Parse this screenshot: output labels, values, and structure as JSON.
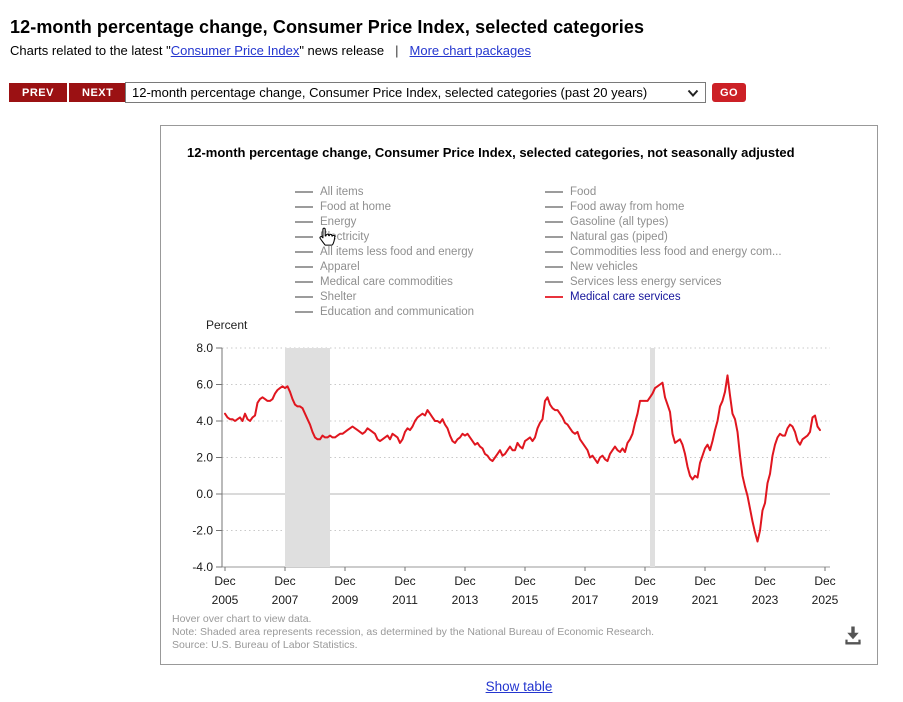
{
  "page": {
    "title": "12-month percentage change, Consumer Price Index, selected categories",
    "intro": {
      "prefix": "Charts related to the latest \"",
      "cpi_link": "Consumer Price Index",
      "suffix": "\" news release",
      "separator": "|",
      "packages_link": "More chart packages"
    },
    "show_table_label": "Show table"
  },
  "controls": {
    "prev": "PREV",
    "next": "NEXT",
    "go": "GO",
    "chart_select_value": "12-month percentage change, Consumer Price Index, selected categories (past 20 years)"
  },
  "chart": {
    "title": "12-month percentage change, Consumer Price Index, selected categories, not seasonally adjusted",
    "y_axis_title": "Percent",
    "legend": {
      "columns": [
        [
          {
            "label": "All items"
          },
          {
            "label": "Food at home"
          },
          {
            "label": "Energy"
          },
          {
            "label": "Electricity"
          },
          {
            "label": "All items less food and energy"
          },
          {
            "label": "Apparel"
          },
          {
            "label": "Medical care commodities"
          },
          {
            "label": "Shelter"
          },
          {
            "label": "Education and communication"
          }
        ],
        [
          {
            "label": "Food"
          },
          {
            "label": "Food away from home"
          },
          {
            "label": "Gasoline (all types)"
          },
          {
            "label": "Natural gas (piped)"
          },
          {
            "label": "Commodities less food and energy com..."
          },
          {
            "label": "New vehicles"
          },
          {
            "label": "Services less energy services"
          },
          {
            "label": "Medical care services",
            "selected": true
          }
        ]
      ]
    },
    "footnotes": [
      "Hover over chart to view data.",
      "Note: Shaded area represents recession, as determined by the National Bureau of Economic Research.",
      "Source: U.S. Bureau of Labor Statistics."
    ],
    "icons": {
      "download": "download-icon",
      "select_chevron": "chevron-down-icon",
      "cursor": "hand-pointer-cursor"
    }
  },
  "colors": {
    "nav_button_bg": "#9b1113",
    "go_button_bg": "#cc2026",
    "link_blue": "#2436cf",
    "line_red": "#e0161f",
    "recession_band": "#dfdfdf",
    "legend_gray": "#8f8f8f",
    "legend_selected_text": "#15159c",
    "legend_selected_dash": "#e8323c",
    "grid_dotted": "#c9c9c9",
    "zero_line": "#b4b4b4",
    "baseline": "#9a9a9a",
    "axis": "#757575",
    "tick_text": "#1a1a1a"
  },
  "chart_data": {
    "type": "line",
    "title": "12-month percentage change, Consumer Price Index, selected categories, not seasonally adjusted",
    "xlabel": "",
    "ylabel": "Percent",
    "ylim": [
      -4.0,
      8.0
    ],
    "y_ticks": [
      8.0,
      6.0,
      4.0,
      2.0,
      0.0,
      -2.0,
      -4.0
    ],
    "x_tick_prefix": "Dec",
    "x_tick_years": [
      2005,
      2007,
      2009,
      2011,
      2013,
      2015,
      2017,
      2019,
      2021,
      2023,
      2025
    ],
    "x_start": "Dec 2005",
    "x_end": "Oct 2025",
    "grid": "dotted horizontal gridlines; solid zero line",
    "legend_position": "top, two columns",
    "recession_bands_months": [
      [
        24,
        42
      ],
      [
        170,
        172
      ]
    ],
    "recession_bands_labels": [
      "Dec 2007 - Jun 2009",
      "Feb 2020 - Apr 2020"
    ],
    "series": [
      {
        "name": "Medical care services",
        "color": "#e0161f",
        "start": "Dec 2005",
        "interval": "monthly",
        "values": [
          4.4,
          4.2,
          4.1,
          4.1,
          4.0,
          4.1,
          4.2,
          4.0,
          4.4,
          4.1,
          4.0,
          4.2,
          4.3,
          5.0,
          5.2,
          5.3,
          5.2,
          5.1,
          5.1,
          5.2,
          5.5,
          5.7,
          5.8,
          5.9,
          5.8,
          5.9,
          5.6,
          5.2,
          4.9,
          4.8,
          4.8,
          4.7,
          4.4,
          4.1,
          3.8,
          3.4,
          3.1,
          3.0,
          3.0,
          3.2,
          3.1,
          3.1,
          3.2,
          3.1,
          3.1,
          3.2,
          3.3,
          3.3,
          3.4,
          3.5,
          3.6,
          3.7,
          3.6,
          3.5,
          3.4,
          3.3,
          3.4,
          3.6,
          3.5,
          3.4,
          3.3,
          3.0,
          2.9,
          3.0,
          3.1,
          3.2,
          3.0,
          3.3,
          3.2,
          3.1,
          2.8,
          3.0,
          3.4,
          3.6,
          3.5,
          3.7,
          4.0,
          4.2,
          4.3,
          4.4,
          4.3,
          4.6,
          4.4,
          4.2,
          4.0,
          4.0,
          3.9,
          4.1,
          3.8,
          3.6,
          3.2,
          2.9,
          2.8,
          3.0,
          3.1,
          3.3,
          3.2,
          3.3,
          3.1,
          2.9,
          2.7,
          2.8,
          2.6,
          2.5,
          2.2,
          2.1,
          1.9,
          1.8,
          2.0,
          2.2,
          2.4,
          2.1,
          2.2,
          2.4,
          2.6,
          2.4,
          2.4,
          2.8,
          2.6,
          2.5,
          2.9,
          3.0,
          3.1,
          2.9,
          3.1,
          3.6,
          3.9,
          4.1,
          5.1,
          5.3,
          4.9,
          4.7,
          4.6,
          4.6,
          4.4,
          4.2,
          3.9,
          3.8,
          3.6,
          3.4,
          3.3,
          3.4,
          3.0,
          2.8,
          2.6,
          2.4,
          2.0,
          2.1,
          1.9,
          1.7,
          2.0,
          2.1,
          1.9,
          1.8,
          2.2,
          2.4,
          2.6,
          2.4,
          2.3,
          2.5,
          2.3,
          2.8,
          3.0,
          3.3,
          3.9,
          4.4,
          5.1,
          5.1,
          5.1,
          5.1,
          5.3,
          5.5,
          5.8,
          5.9,
          6.0,
          6.1,
          5.3,
          4.9,
          4.5,
          3.3,
          2.8,
          2.9,
          3.0,
          2.7,
          2.2,
          1.5,
          1.0,
          0.8,
          1.0,
          0.9,
          1.7,
          2.1,
          2.5,
          2.7,
          2.4,
          2.9,
          3.5,
          4.0,
          4.8,
          5.1,
          5.6,
          6.5,
          5.4,
          4.4,
          4.1,
          3.4,
          2.1,
          1.0,
          0.4,
          -0.1,
          -0.8,
          -1.5,
          -2.1,
          -2.6,
          -2.0,
          -0.9,
          -0.5,
          0.6,
          1.1,
          2.1,
          2.7,
          3.1,
          3.3,
          3.2,
          3.2,
          3.6,
          3.8,
          3.7,
          3.4,
          2.9,
          2.7,
          3.0,
          3.1,
          3.2,
          3.4,
          4.2,
          4.3,
          3.7,
          3.5
        ]
      }
    ]
  }
}
